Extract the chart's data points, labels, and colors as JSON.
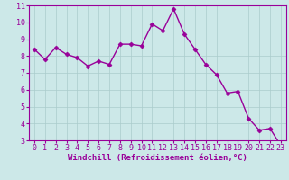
{
  "x": [
    0,
    1,
    2,
    3,
    4,
    5,
    6,
    7,
    8,
    9,
    10,
    11,
    12,
    13,
    14,
    15,
    16,
    17,
    18,
    19,
    20,
    21,
    22,
    23
  ],
  "y": [
    8.4,
    7.8,
    8.5,
    8.1,
    7.9,
    7.4,
    7.7,
    7.5,
    8.7,
    8.7,
    8.6,
    9.9,
    9.5,
    10.8,
    9.3,
    8.4,
    7.5,
    6.9,
    5.8,
    5.9,
    4.3,
    3.6,
    3.7,
    2.7
  ],
  "line_color": "#990099",
  "marker": "D",
  "markersize": 2.5,
  "linewidth": 1.0,
  "xlabel": "Windchill (Refroidissement éolien,°C)",
  "xlabel_fontsize": 6.5,
  "bg_color": "#cce8e8",
  "grid_color": "#aacccc",
  "ylim": [
    3,
    11
  ],
  "xlim": [
    -0.5,
    23.5
  ],
  "yticks": [
    3,
    4,
    5,
    6,
    7,
    8,
    9,
    10,
    11
  ],
  "xticks": [
    0,
    1,
    2,
    3,
    4,
    5,
    6,
    7,
    8,
    9,
    10,
    11,
    12,
    13,
    14,
    15,
    16,
    17,
    18,
    19,
    20,
    21,
    22,
    23
  ],
  "tick_fontsize": 6,
  "tick_color": "#990099",
  "spine_color": "#990099",
  "xlabel_color": "#990099"
}
